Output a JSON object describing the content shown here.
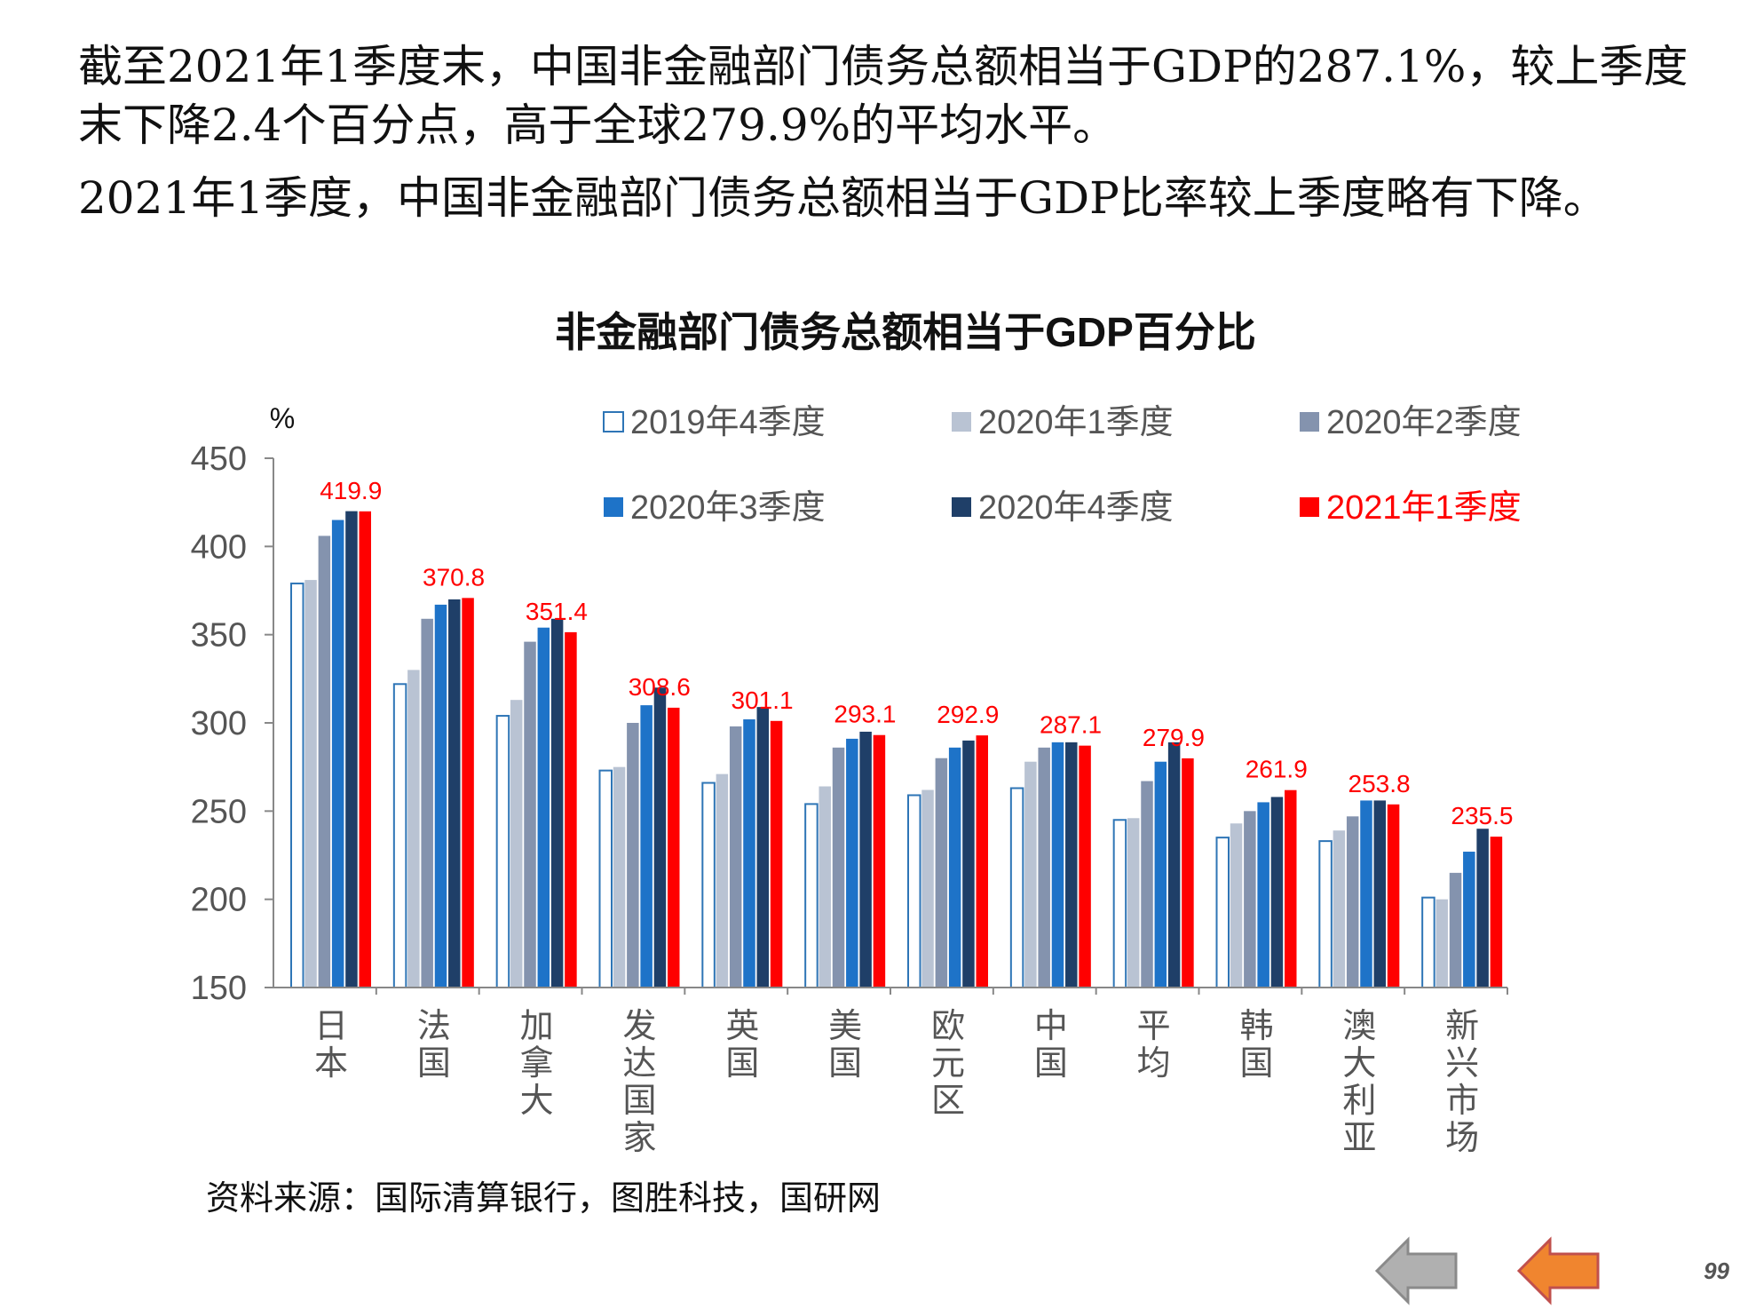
{
  "intro": {
    "paragraph1": "截至2021年1季度末，中国非金融部门债务总额相当于GDP的287.1%，较上季度末下降2.4个百分点，高于全球279.9%的平均水平。",
    "paragraph2": "2021年1季度，中国非金融部门债务总额相当于GDP比率较上季度略有下降。"
  },
  "chart_data": {
    "type": "bar",
    "title": "非金融部门债务总额相当于GDP百分比",
    "ylabel": "%",
    "xlabel": "",
    "ylim": [
      150,
      450
    ],
    "yticks": [
      150,
      200,
      250,
      300,
      350,
      400,
      450
    ],
    "grid": false,
    "legend_position": "top",
    "categories": [
      "日本",
      "法国",
      "加拿大",
      "发达国家",
      "英国",
      "美国",
      "欧元区",
      "中国",
      "平均",
      "韩国",
      "澳大利亚",
      "新兴市场"
    ],
    "series": [
      {
        "name": "2019年4季度",
        "color": "#ffffff",
        "stroke": "#2e75b6",
        "values": [
          379,
          322,
          304,
          273,
          266,
          254,
          259,
          263,
          245,
          235,
          233,
          201
        ]
      },
      {
        "name": "2020年1季度",
        "color": "#b9c3d3",
        "values": [
          381,
          330,
          313,
          275,
          271,
          264,
          262,
          278,
          246,
          243,
          239,
          200
        ]
      },
      {
        "name": "2020年2季度",
        "color": "#8493ae",
        "values": [
          406,
          359,
          346,
          300,
          298,
          286,
          280,
          286,
          267,
          250,
          247,
          215
        ]
      },
      {
        "name": "2020年3季度",
        "color": "#1e73c8",
        "values": [
          415,
          367,
          354,
          310,
          302,
          291,
          286,
          289,
          278,
          255,
          256,
          227
        ]
      },
      {
        "name": "2020年4季度",
        "color": "#1f3f68",
        "values": [
          420,
          370,
          359,
          320,
          309,
          295,
          290,
          289,
          289,
          258,
          256,
          240
        ]
      },
      {
        "name": "2021年1季度",
        "color": "#ff0000",
        "values": [
          419.9,
          370.8,
          351.4,
          308.6,
          301.1,
          293.1,
          292.9,
          287.1,
          279.9,
          261.9,
          253.8,
          235.5
        ]
      }
    ],
    "data_labels": [
      "419.9",
      "370.8",
      "351.4",
      "308.6",
      "301.1",
      "293.1",
      "292.9",
      "287.1",
      "279.9",
      "261.9",
      "253.8",
      "235.5"
    ],
    "data_label_color": "#ff0000",
    "axis_color": "#888888",
    "tick_label_color": "#555555"
  },
  "source": "资料来源：国际清算银行，图胜科技，国研网",
  "page_number": "99",
  "nav": {
    "back_color": "#b0b0b0",
    "forward_color": "#f0852f",
    "back_icon": "left-arrow-icon",
    "forward_icon": "left-arrow-icon"
  }
}
